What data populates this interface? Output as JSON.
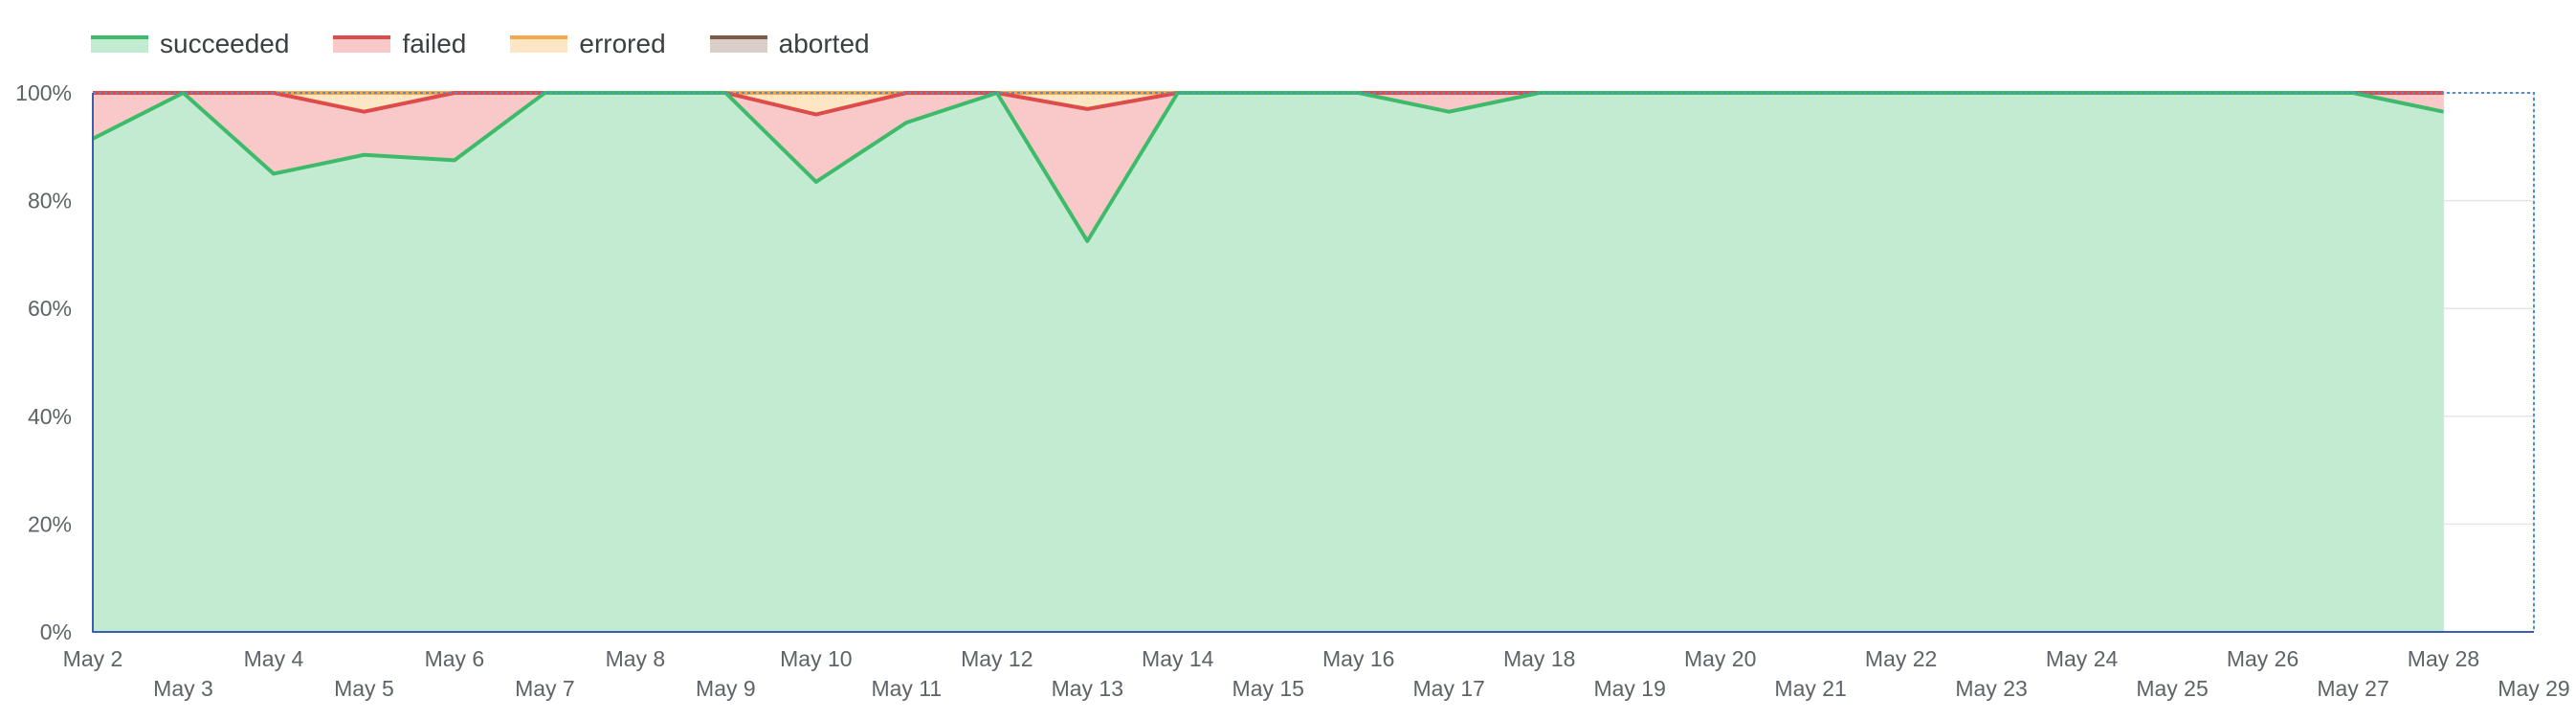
{
  "chart_data": {
    "type": "area",
    "stacked": true,
    "normalized": true,
    "legend_position": "top-left",
    "grid": true,
    "ylim": [
      0,
      100
    ],
    "y_ticks": [
      "0%",
      "20%",
      "40%",
      "60%",
      "80%",
      "100%"
    ],
    "x_tick_labels": [
      "May 2",
      "May 3",
      "May 4",
      "May 5",
      "May 6",
      "May 7",
      "May 8",
      "May 9",
      "May 10",
      "May 11",
      "May 12",
      "May 13",
      "May 14",
      "May 15",
      "May 16",
      "May 17",
      "May 18",
      "May 19",
      "May 20",
      "May 21",
      "May 22",
      "May 23",
      "May 24",
      "May 25",
      "May 26",
      "May 27",
      "May 28",
      "May 29"
    ],
    "x": [
      "May 2",
      "May 3",
      "May 4",
      "May 5",
      "May 6",
      "May 7",
      "May 8",
      "May 9",
      "May 10",
      "May 11",
      "May 12",
      "May 13",
      "May 14",
      "May 15",
      "May 16",
      "May 17",
      "May 18",
      "May 19",
      "May 20",
      "May 21",
      "May 22",
      "May 23",
      "May 24",
      "May 25",
      "May 26",
      "May 27",
      "May 28"
    ],
    "series": [
      {
        "name": "succeeded",
        "line_color": "#3dbb6a",
        "fill_color": "#c2ebd1",
        "values": [
          91.5,
          100,
          85,
          88.5,
          87.5,
          100,
          100,
          100,
          83.5,
          94.5,
          100,
          72.5,
          100,
          100,
          100,
          96.5,
          100,
          100,
          100,
          100,
          100,
          100,
          100,
          100,
          100,
          100,
          96.5
        ]
      },
      {
        "name": "failed",
        "line_color": "#dd4b4b",
        "fill_color": "#f9c9c9",
        "values": [
          8.5,
          0,
          15,
          8,
          12.5,
          0,
          0,
          0,
          12.5,
          5.5,
          0,
          24.5,
          0,
          0,
          0,
          3.5,
          0,
          0,
          0,
          0,
          0,
          0,
          0,
          0,
          0,
          0,
          3.5
        ]
      },
      {
        "name": "errored",
        "line_color": "#f3a94b",
        "fill_color": "#fde6c3",
        "values": [
          0,
          0,
          0,
          3.5,
          0,
          0,
          0,
          0,
          4,
          0,
          0,
          3,
          0,
          0,
          0,
          0,
          0,
          0,
          0,
          0,
          0,
          0,
          0,
          0,
          0,
          0,
          0
        ]
      },
      {
        "name": "aborted",
        "line_color": "#7b5a44",
        "fill_color": "#d9cfc8",
        "values": [
          0,
          0,
          0,
          0,
          0,
          0,
          0,
          0,
          0,
          0,
          0,
          0,
          0,
          0,
          0,
          0,
          0,
          0,
          0,
          0,
          0,
          0,
          0,
          0,
          0,
          0,
          0
        ]
      }
    ]
  }
}
